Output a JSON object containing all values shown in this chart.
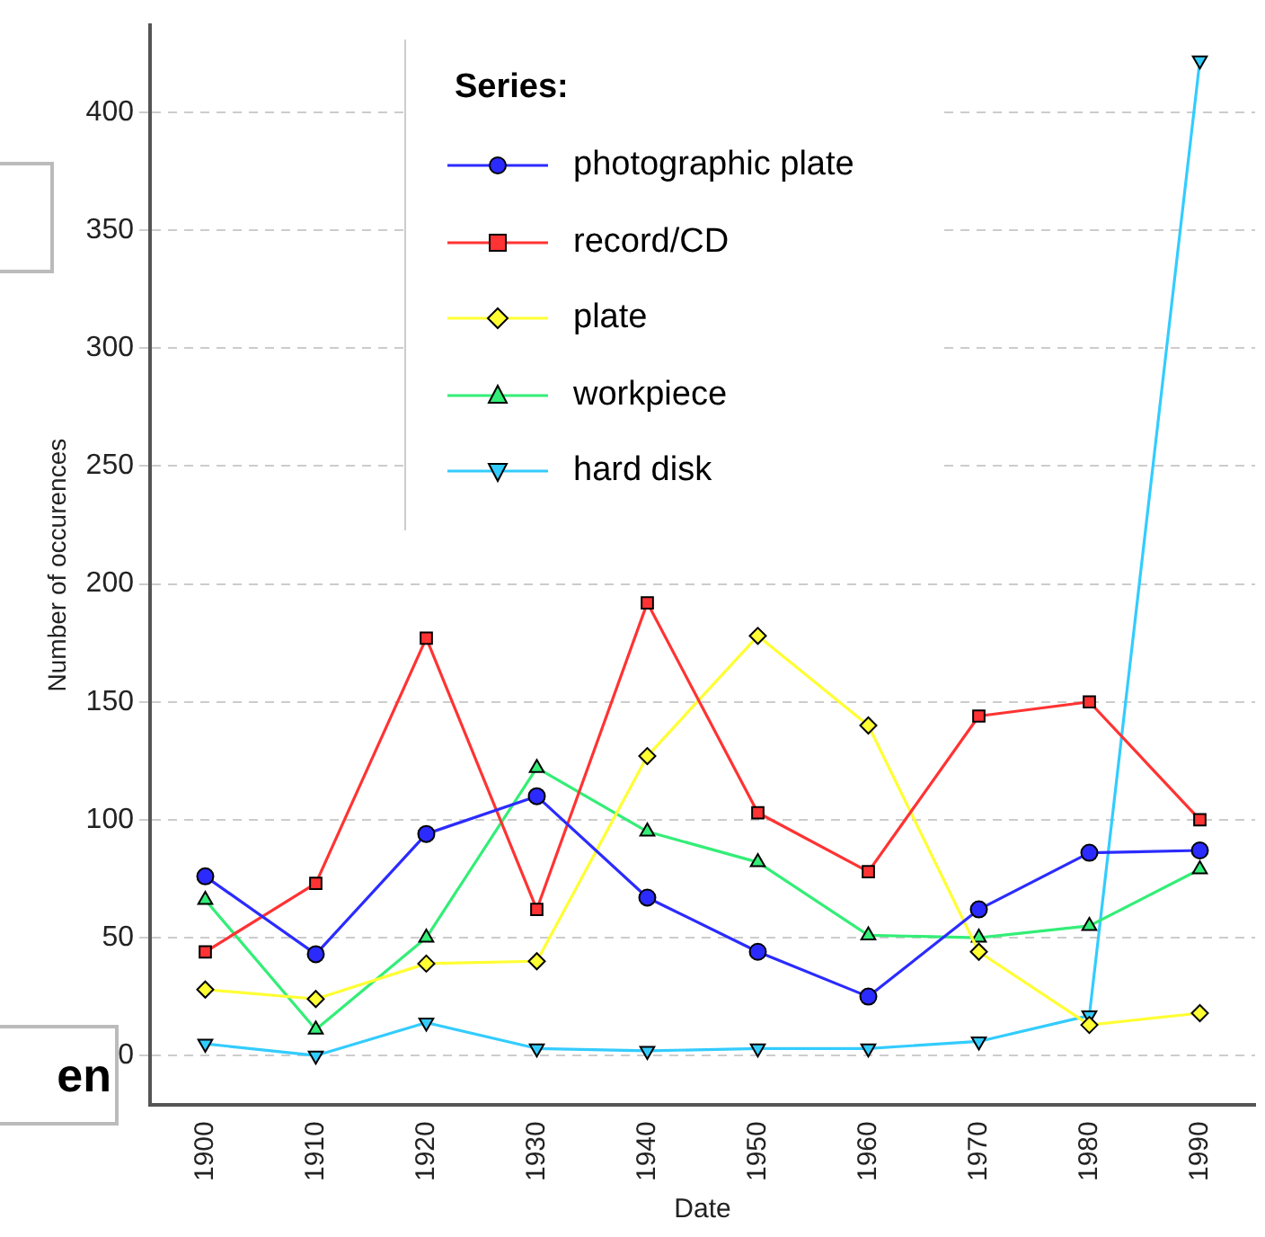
{
  "chart_data": {
    "type": "line",
    "xlabel": "Date",
    "ylabel": "Number of occurences",
    "legend_title": "Series:",
    "categories": [
      "1900",
      "1910",
      "1920",
      "1930",
      "1940",
      "1950",
      "1960",
      "1970",
      "1980",
      "1990"
    ],
    "ylim": [
      -21,
      437
    ],
    "yticks": [
      0,
      50,
      100,
      150,
      200,
      250,
      300,
      350,
      400
    ],
    "grid": "y",
    "legend": "top",
    "line_style": "solid",
    "series": [
      {
        "name": "photographic plate",
        "color": "#2b2bff",
        "marker": "circle",
        "values": [
          76,
          43,
          94,
          110,
          67,
          44,
          25,
          62,
          86,
          87
        ]
      },
      {
        "name": "record/CD",
        "color": "#ff3333",
        "marker": "square",
        "values": [
          44,
          73,
          177,
          62,
          192,
          103,
          78,
          144,
          150,
          100
        ]
      },
      {
        "name": "plate",
        "color": "#ffff33",
        "marker": "diamond",
        "values": [
          28,
          24,
          39,
          40,
          127,
          178,
          140,
          44,
          13,
          18
        ]
      },
      {
        "name": "workpiece",
        "color": "#33ee77",
        "marker": "triangle",
        "values": [
          66,
          11,
          50,
          122,
          95,
          82,
          51,
          50,
          55,
          79
        ]
      },
      {
        "name": "hard disk",
        "color": "#33ccff",
        "marker": "triangle-down",
        "values": [
          5,
          0,
          14,
          3,
          2,
          3,
          3,
          6,
          17,
          422
        ]
      }
    ],
    "annotations": [
      "en"
    ]
  }
}
